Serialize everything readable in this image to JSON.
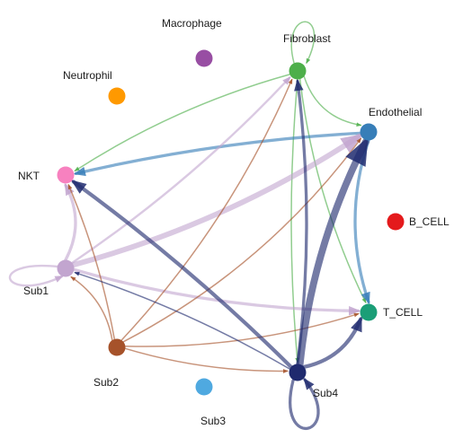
{
  "diagram": {
    "type": "cell-cell communication circle network",
    "nodes": [
      {
        "id": "macrophage",
        "label": "Macrophage",
        "color": "#984ea3"
      },
      {
        "id": "fibroblast",
        "label": "Fibroblast",
        "color": "#4daf4a"
      },
      {
        "id": "neutrophil",
        "label": "Neutrophil",
        "color": "#ff9900"
      },
      {
        "id": "endothelial",
        "label": "Endothelial",
        "color": "#377eb8"
      },
      {
        "id": "nkt",
        "label": "NKT",
        "color": "#f781bf"
      },
      {
        "id": "b-cell",
        "label": "B_CELL",
        "color": "#e41a1c"
      },
      {
        "id": "sub1",
        "label": "Sub1",
        "color": "#c2a5cf"
      },
      {
        "id": "t-cell",
        "label": "T_CELL",
        "color": "#1b9e77"
      },
      {
        "id": "sub2",
        "label": "Sub2",
        "color": "#a6522a"
      },
      {
        "id": "sub4",
        "label": "Sub4",
        "color": "#1f2a6e"
      },
      {
        "id": "sub3",
        "label": "Sub3",
        "color": "#4fa9e0"
      }
    ],
    "edges": [
      {
        "source": "fibroblast",
        "target": "fibroblast",
        "color": "#4daf4a",
        "weight": 1
      },
      {
        "source": "fibroblast",
        "target": "endothelial",
        "color": "#4daf4a",
        "weight": 1
      },
      {
        "source": "fibroblast",
        "target": "nkt",
        "color": "#4daf4a",
        "weight": 1
      },
      {
        "source": "fibroblast",
        "target": "t-cell",
        "color": "#4daf4a",
        "weight": 1
      },
      {
        "source": "fibroblast",
        "target": "sub4",
        "color": "#4daf4a",
        "weight": 1
      },
      {
        "source": "endothelial",
        "target": "nkt",
        "color": "#377eb8",
        "weight": 3
      },
      {
        "source": "endothelial",
        "target": "t-cell",
        "color": "#377eb8",
        "weight": 3
      },
      {
        "source": "sub1",
        "target": "fibroblast",
        "color": "#c2a5cf",
        "weight": 2
      },
      {
        "source": "sub1",
        "target": "endothelial",
        "color": "#c2a5cf",
        "weight": 6
      },
      {
        "source": "sub1",
        "target": "nkt",
        "color": "#c2a5cf",
        "weight": 3
      },
      {
        "source": "sub1",
        "target": "sub1",
        "color": "#c2a5cf",
        "weight": 2
      },
      {
        "source": "sub1",
        "target": "t-cell",
        "color": "#c2a5cf",
        "weight": 3
      },
      {
        "source": "sub2",
        "target": "nkt",
        "color": "#a6522a",
        "weight": 1
      },
      {
        "source": "sub2",
        "target": "sub1",
        "color": "#a6522a",
        "weight": 1
      },
      {
        "source": "sub2",
        "target": "fibroblast",
        "color": "#a6522a",
        "weight": 1
      },
      {
        "source": "sub2",
        "target": "endothelial",
        "color": "#a6522a",
        "weight": 1
      },
      {
        "source": "sub2",
        "target": "t-cell",
        "color": "#a6522a",
        "weight": 1
      },
      {
        "source": "sub2",
        "target": "sub4",
        "color": "#a6522a",
        "weight": 1
      },
      {
        "source": "sub4",
        "target": "fibroblast",
        "color": "#1f2a6e",
        "weight": 3
      },
      {
        "source": "sub4",
        "target": "endothelial",
        "color": "#1f2a6e",
        "weight": 8
      },
      {
        "source": "sub4",
        "target": "nkt",
        "color": "#1f2a6e",
        "weight": 4
      },
      {
        "source": "sub4",
        "target": "sub1",
        "color": "#1f2a6e",
        "weight": 1
      },
      {
        "source": "sub4",
        "target": "t-cell",
        "color": "#1f2a6e",
        "weight": 4
      },
      {
        "source": "sub4",
        "target": "sub4",
        "color": "#1f2a6e",
        "weight": 3
      }
    ]
  }
}
